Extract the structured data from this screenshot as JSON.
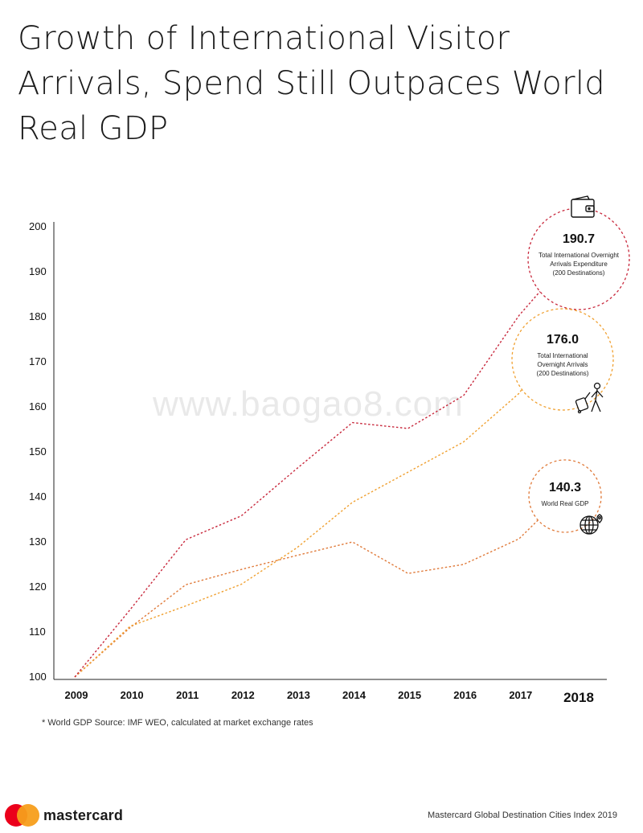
{
  "title": "Growth of International Visitor Arrivals, Spend Still Outpaces World Real GDP",
  "chart_data": {
    "type": "line",
    "x": [
      "2009",
      "2010",
      "2011",
      "2012",
      "2013",
      "2014",
      "2015",
      "2016",
      "2017",
      "2018"
    ],
    "ylim": [
      100,
      200
    ],
    "y_ticks": [
      "100",
      "110",
      "120",
      "130",
      "140",
      "150",
      "160",
      "170",
      "180",
      "190",
      "200"
    ],
    "grid": false,
    "series": [
      {
        "name": "Total International Overnight Arrivals Expenditure (200 Destinations)",
        "color": "#c8283c",
        "values": [
          100,
          115,
          130.5,
          135.8,
          146.3,
          156.5,
          155.2,
          162.5,
          180.3,
          190.7
        ],
        "value_label": "190.7",
        "label_lines": [
          "Total International Overnight",
          "Arrivals Expenditure",
          "(200 Destinations)"
        ],
        "icon": "wallet-icon"
      },
      {
        "name": "Total International Overnight Arrivals (200 Destinations)",
        "color": "#f0a030",
        "values": [
          100,
          111.3,
          115.8,
          120.6,
          128.7,
          138.8,
          145.5,
          152.2,
          163.0,
          176.0
        ],
        "value_label": "176.0",
        "label_lines": [
          "Total International",
          "Overnight Arrivals",
          "(200 Destinations)"
        ],
        "icon": "traveler-icon"
      },
      {
        "name": "World Real GDP",
        "color": "#e07a3a",
        "values": [
          100,
          111.0,
          120.5,
          123.9,
          127.0,
          130.0,
          123.0,
          125.0,
          130.7,
          140.3
        ],
        "value_label": "140.3",
        "label_lines": [
          "World Real GDP"
        ],
        "icon": "globe-pin-icon"
      }
    ]
  },
  "footnote": "* World GDP Source: IMF WEO, calculated at market exchange rates",
  "brand": "mastercard",
  "credit": "Mastercard Global Destination Cities Index 2019",
  "watermark": "www.baogao8.com",
  "colors": {
    "gdp": "#e07a3a",
    "arrivals": "#f0a030",
    "expenditure": "#c8283c"
  }
}
